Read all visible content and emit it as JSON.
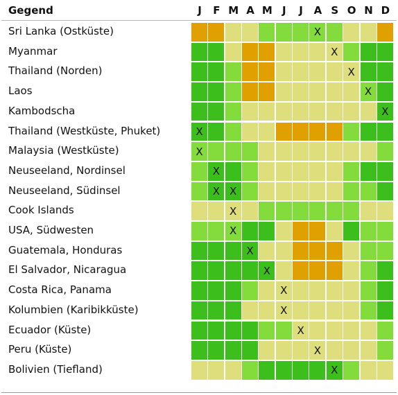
{
  "header": {
    "title": "Gegend",
    "months": [
      "J",
      "F",
      "M",
      "A",
      "M",
      "J",
      "J",
      "A",
      "S",
      "O",
      "N",
      "D"
    ]
  },
  "colors": {
    "O": "#e0a000",
    "Y": "#dede7c",
    "L": "#84dc3c",
    "G": "#3cbe1c"
  },
  "marker": "X",
  "rows": [
    {
      "label": "Sri Lanka (Ostküste)",
      "cells": "OOYYLLLLLYYO",
      "mark": 8
    },
    {
      "label": "Myanmar",
      "cells": "GGYOOYYYYLGG",
      "mark": 9
    },
    {
      "label": "Thailand (Norden)",
      "cells": "GGLOOYYYYYGG",
      "mark": 10
    },
    {
      "label": "Laos",
      "cells": "GGLOOYYYYYLG",
      "mark": 11
    },
    {
      "label": "Kambodscha",
      "cells": "GGLYYYYYYYYG",
      "mark": 12
    },
    {
      "label": "Thailand (Westküste, Phuket)",
      "cells": "GGLYYOOOOLGG",
      "mark": 1
    },
    {
      "label": "Malaysia (Westküste)",
      "cells": "LLLLYYYYYYYL",
      "mark": 1
    },
    {
      "label": "Neuseeland, Nordinsel",
      "cells": "LGGLYYYYYLGG",
      "mark": 2
    },
    {
      "label": "Neuseeland, Südinsel",
      "cells": "LGGLYYYYYLLG",
      "mark": [
        2,
        3
      ]
    },
    {
      "label": "Cook Islands",
      "cells": "YYYYLLLLLLYY",
      "mark": 3
    },
    {
      "label": "USA, Südwesten",
      "cells": "LLLGGYOOYGLL",
      "mark": 3
    },
    {
      "label": "Guatemala, Honduras",
      "cells": "GGGGYYOOOYLL",
      "mark": 4
    },
    {
      "label": "El Salvador, Nicaragua",
      "cells": "GGGGGYOOOYLG",
      "mark": 5
    },
    {
      "label": "Costa Rica, Panama",
      "cells": "GGGLYYYYYYLG",
      "mark": 6
    },
    {
      "label": "Kolumbien (Karibikküste)",
      "cells": "GGGYYYYYYYLG",
      "mark": 6
    },
    {
      "label": "Ecuador (Küste)",
      "cells": "GGGGLLYYYYYL",
      "mark": 7
    },
    {
      "label": "Peru (Küste)",
      "cells": "GGGGYYYYYYYL",
      "mark": 8
    },
    {
      "label": "Bolivien (Tiefland)",
      "cells": "YYYLGGGGGLYY",
      "mark": 9
    }
  ]
}
